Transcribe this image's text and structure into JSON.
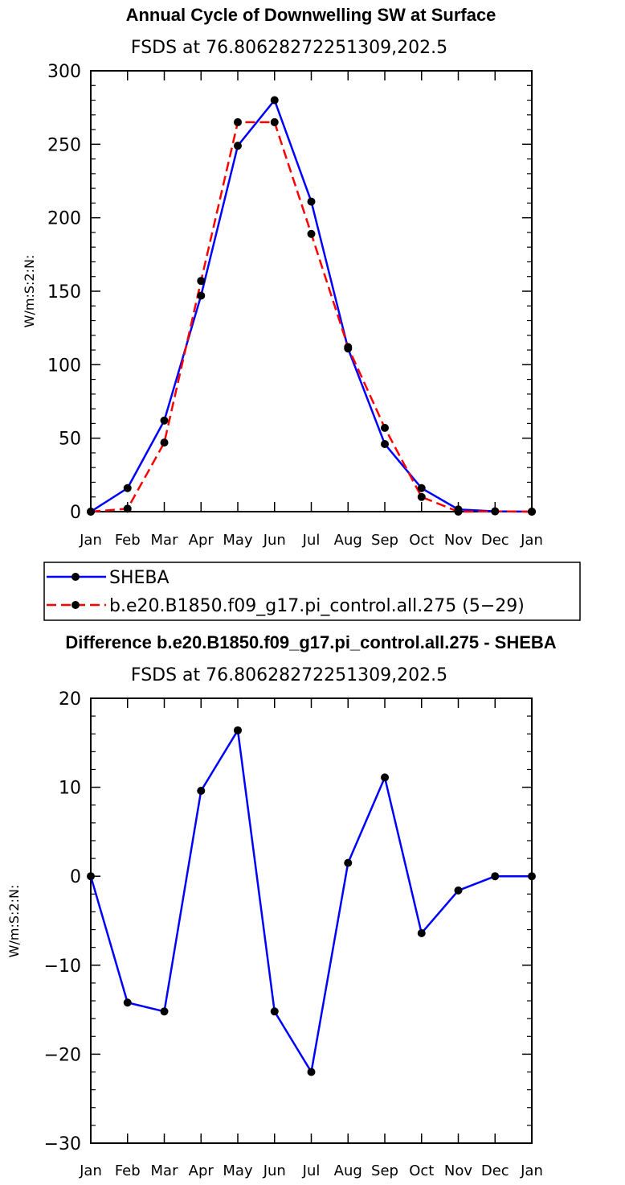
{
  "chart_data": [
    {
      "type": "line",
      "title": "Annual Cycle of Downwelling SW at Surface",
      "subtitle": "FSDS at 76.80628272251309,202.5",
      "ylabel": "W/m:S:2:N:",
      "xlabel": "",
      "categories": [
        "Jan",
        "Feb",
        "Mar",
        "Apr",
        "May",
        "Jun",
        "Jul",
        "Aug",
        "Sep",
        "Oct",
        "Nov",
        "Dec",
        "Jan"
      ],
      "ylim": [
        0,
        300
      ],
      "yticks": [
        0,
        50,
        100,
        150,
        200,
        250,
        300
      ],
      "grid": false,
      "legend_position": "bottom",
      "series": [
        {
          "name": "SHEBA",
          "color": "#0000ff",
          "dash": "solid",
          "values": [
            0,
            16,
            62,
            147,
            249,
            280,
            211,
            111,
            46,
            16,
            1.5,
            0.2,
            0
          ]
        },
        {
          "name": "b.e20.B1850.f09_g17.pi_control.all.275 (5−29)",
          "color": "#ff0000",
          "dash": "dashed",
          "values": [
            0,
            2,
            47,
            157,
            265,
            265,
            189,
            112,
            57,
            10,
            0,
            0.2,
            0
          ]
        }
      ]
    },
    {
      "type": "line",
      "title": "Difference b.e20.B1850.f09_g17.pi_control.all.275 - SHEBA",
      "subtitle": "FSDS at 76.80628272251309,202.5",
      "ylabel": "W/m:S:2:N:",
      "xlabel": "",
      "categories": [
        "Jan",
        "Feb",
        "Mar",
        "Apr",
        "May",
        "Jun",
        "Jul",
        "Aug",
        "Sep",
        "Oct",
        "Nov",
        "Dec",
        "Jan"
      ],
      "ylim": [
        -30,
        20
      ],
      "yticks": [
        -30,
        -20,
        -10,
        0,
        10,
        20
      ],
      "grid": false,
      "series": [
        {
          "color": "#0000ff",
          "dash": "solid",
          "values": [
            0,
            -14.2,
            -15.2,
            9.6,
            16.4,
            -15.2,
            -22,
            1.5,
            11.1,
            -6.4,
            -1.6,
            0,
            0
          ]
        }
      ]
    }
  ]
}
